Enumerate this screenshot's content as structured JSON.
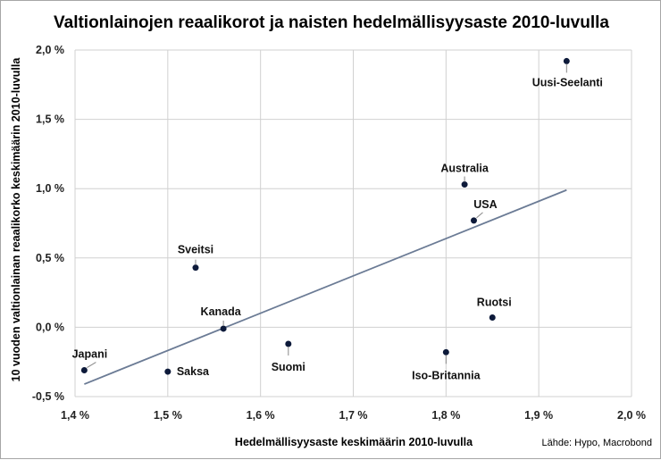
{
  "chart_data": {
    "type": "scatter",
    "title": "Valtionlainojen reaalikorot ja naisten hedelmällisyysaste 2010-luvulla",
    "xlabel": "Hedelmällisyysaste keskimäärin 2010-luvulla",
    "ylabel": "10 vuoden valtionlainan reaalikorko keskimäärin 2010-luvulla",
    "source": "Lähde: Hypo, Macrobond",
    "xlim": [
      1.4,
      2.0
    ],
    "ylim": [
      -0.5,
      2.0
    ],
    "x_ticks": [
      1.4,
      1.5,
      1.6,
      1.7,
      1.8,
      1.9,
      2.0
    ],
    "x_tick_labels": [
      "1,4 %",
      "1,5 %",
      "1,6 %",
      "1,7 %",
      "1,8 %",
      "1,9 %",
      "2,0 %"
    ],
    "y_ticks": [
      -0.5,
      0.0,
      0.5,
      1.0,
      1.5,
      2.0
    ],
    "y_tick_labels": [
      "-0,5 %",
      "0,0 %",
      "0,5 %",
      "1,0 %",
      "1,5 %",
      "2,0 %"
    ],
    "grid": true,
    "points": [
      {
        "label": "Japani",
        "x": 1.41,
        "y": -0.31
      },
      {
        "label": "Saksa",
        "x": 1.5,
        "y": -0.32
      },
      {
        "label": "Sveitsi",
        "x": 1.53,
        "y": 0.43
      },
      {
        "label": "Kanada",
        "x": 1.56,
        "y": -0.01
      },
      {
        "label": "Suomi",
        "x": 1.63,
        "y": -0.12
      },
      {
        "label": "Iso-Britannia",
        "x": 1.8,
        "y": -0.18
      },
      {
        "label": "Australia",
        "x": 1.82,
        "y": 1.03
      },
      {
        "label": "USA",
        "x": 1.83,
        "y": 0.77
      },
      {
        "label": "Ruotsi",
        "x": 1.85,
        "y": 0.07
      },
      {
        "label": "Uusi-Seelanti",
        "x": 1.93,
        "y": 1.92
      }
    ],
    "trendline": {
      "x": [
        1.41,
        1.93
      ],
      "y": [
        -0.41,
        0.99
      ]
    },
    "colors": {
      "marker": "#0d1a3a",
      "trendline": "#6b7b95",
      "grid": "#d0d0d0"
    }
  }
}
